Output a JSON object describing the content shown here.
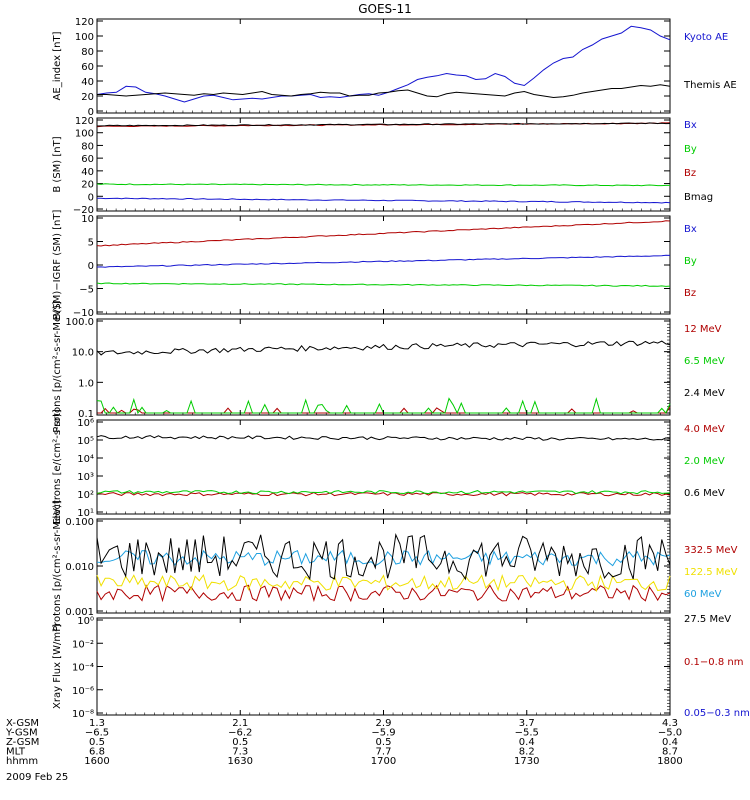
{
  "title": "GOES-11",
  "date_label": "2009 Feb 25",
  "colors": {
    "black": "#000000",
    "blue": "#1515d0",
    "red": "#b00000",
    "green": "#00cc00",
    "cyan": "#1ea0e0",
    "yellow": "#f0e000"
  },
  "chart_data": [
    {
      "type": "line",
      "panel": "ae_index",
      "ylabel": "AE_index [nT]",
      "ylim": [
        0,
        120
      ],
      "yticks": [
        "0",
        "20",
        "40",
        "60",
        "80",
        "100",
        "120"
      ],
      "series": [
        {
          "name": "Kyoto AE",
          "color": "blue",
          "y": [
            22,
            24,
            25,
            33,
            32,
            25,
            23,
            20,
            16,
            12,
            16,
            20,
            21,
            18,
            15,
            16,
            17,
            16,
            18,
            20,
            20,
            21,
            22,
            18,
            19,
            18,
            20,
            22,
            23,
            21,
            25,
            30,
            35,
            42,
            45,
            47,
            50,
            48,
            47,
            42,
            43,
            50,
            46,
            37,
            34,
            44,
            55,
            64,
            70,
            72,
            82,
            88,
            96,
            100,
            104,
            113,
            111,
            108,
            100,
            95
          ]
        },
        {
          "name": "Themis AE",
          "color": "black",
          "y": [
            22,
            22,
            21,
            20,
            21,
            22,
            23,
            24,
            23,
            22,
            21,
            23,
            22,
            24,
            23,
            22,
            24,
            26,
            22,
            21,
            20,
            22,
            23,
            25,
            24,
            24,
            20,
            21,
            21,
            24,
            25,
            27,
            28,
            24,
            20,
            19,
            23,
            25,
            24,
            23,
            22,
            21,
            20,
            24,
            26,
            22,
            20,
            18,
            19,
            21,
            24,
            26,
            28,
            30,
            30,
            32,
            34,
            33,
            35,
            33
          ]
        }
      ]
    },
    {
      "type": "line",
      "panel": "b_sm",
      "ylabel": "B (SM) [nT]",
      "ylim": [
        -20,
        120
      ],
      "yticks": [
        "−20",
        "0",
        "20",
        "40",
        "60",
        "80",
        "100",
        "120"
      ],
      "series": [
        {
          "name": "Bx",
          "color": "blue",
          "y_start": -3,
          "y_end": -10
        },
        {
          "name": "By",
          "color": "green",
          "y_start": 19,
          "y_end": 17
        },
        {
          "name": "Bz",
          "color": "red",
          "y_start": 110,
          "y_end": 115
        },
        {
          "name": "Bmag",
          "color": "black",
          "y_start": 111,
          "y_end": 115
        }
      ]
    },
    {
      "type": "line",
      "panel": "b_igrf",
      "ylabel": "B(SM)−IGRF (SM) [nT]",
      "ylim": [
        -11,
        11
      ],
      "yticks": [
        "−10",
        "−5",
        "0",
        "5",
        "10"
      ],
      "series": [
        {
          "name": "Bx",
          "color": "blue",
          "y_start": -0.5,
          "y_end": 2.2
        },
        {
          "name": "By",
          "color": "green",
          "y_start": -4.3,
          "y_end": -4.9
        },
        {
          "name": "Bz",
          "color": "red",
          "y_start": 4.5,
          "y_end": 10.3
        }
      ]
    },
    {
      "type": "line",
      "panel": "protons_low",
      "ylabel": "Protons [p/(cm²-s-sr-MeV)]",
      "scale": "log",
      "ylim": [
        0.1,
        100
      ],
      "yticks": [
        "0.1",
        "1.0",
        "10.0",
        "100.0"
      ],
      "series": [
        {
          "name": "12 MeV",
          "color": "red"
        },
        {
          "name": "6.5 MeV",
          "color": "green"
        },
        {
          "name": "2.4 MeV",
          "color": "black",
          "y_start": 9,
          "y_end": 20
        }
      ]
    },
    {
      "type": "line",
      "panel": "electrons",
      "ylabel": "Electrons [e/(cm²-s-sr)]",
      "scale": "log",
      "ylim": [
        10,
        1000000
      ],
      "yticks": [
        "10¹",
        "10²",
        "10³",
        "10⁴",
        "10⁵",
        "10⁶"
      ],
      "series": [
        {
          "name": "4.0 MeV",
          "color": "red",
          "y_start": 100,
          "y_end": 100
        },
        {
          "name": "2.0 MeV",
          "color": "green",
          "y_start": 130,
          "y_end": 130
        },
        {
          "name": "0.6 MeV",
          "color": "black",
          "y_start": 150000,
          "y_end": 110000
        }
      ]
    },
    {
      "type": "line",
      "panel": "protons_high",
      "ylabel": "Protons [p/(cm²-s-sr-MeV)]",
      "scale": "log",
      "ylim": [
        0.001,
        0.1
      ],
      "yticks": [
        "0.001",
        "0.010",
        "0.100"
      ],
      "series": [
        {
          "name": "332.5 MeV",
          "color": "red",
          "level": 0.0025
        },
        {
          "name": "122.5 MeV",
          "color": "yellow",
          "level": 0.0042
        },
        {
          "name": "60 MeV",
          "color": "cyan",
          "level": 0.015
        },
        {
          "name": "27.5 MeV",
          "color": "black",
          "level": 0.016
        }
      ]
    },
    {
      "type": "line",
      "panel": "xray",
      "ylabel": "Xray Flux [W/m²]",
      "scale": "log",
      "ylim": [
        1e-09,
        1
      ],
      "yticks": [
        "10⁻⁸",
        "10⁻⁶",
        "10⁻⁴",
        "10⁻²",
        "10⁰"
      ],
      "series": [
        {
          "name": "0.1−0.8 nm",
          "color": "red"
        },
        {
          "name": "0.05−0.3 nm",
          "color": "blue"
        }
      ]
    }
  ],
  "x_axis": {
    "row_labels": [
      "X-GSM",
      "Y-GSM",
      "Z-GSM",
      "MLT",
      "hhmm"
    ],
    "columns": [
      [
        "1.3",
        "−6.5",
        "0.5",
        "6.8",
        "1600"
      ],
      [
        "2.1",
        "−6.2",
        "0.5",
        "7.3",
        "1630"
      ],
      [
        "2.9",
        "−5.9",
        "0.5",
        "7.7",
        "1700"
      ],
      [
        "3.7",
        "−5.5",
        "0.4",
        "8.2",
        "1730"
      ],
      [
        "4.3",
        "−5.0",
        "0.4",
        "8.7",
        "1800"
      ]
    ]
  }
}
